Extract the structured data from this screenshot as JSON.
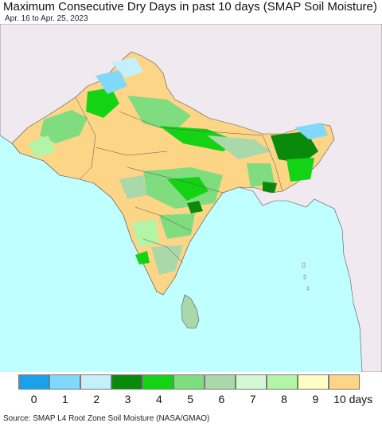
{
  "title": "Maximum Consecutive Dry Days in past 10 days (SMAP Soil Moisture)",
  "subtitle": "Apr. 16 to Apr. 25, 2023",
  "legend": {
    "items": [
      {
        "label": "0",
        "color": "#1ba1ea"
      },
      {
        "label": "1",
        "color": "#80d8fa"
      },
      {
        "label": "2",
        "color": "#c4f0fc"
      },
      {
        "label": "3",
        "color": "#0a8a0a"
      },
      {
        "label": "4",
        "color": "#14d314"
      },
      {
        "label": "5",
        "color": "#7fdc7f"
      },
      {
        "label": "6",
        "color": "#a9d8a9"
      },
      {
        "label": "7",
        "color": "#d4f7d4"
      },
      {
        "label": "8",
        "color": "#b3f5a7"
      },
      {
        "label": "9",
        "color": "#fffdc6"
      },
      {
        "label": "10 days",
        "color": "#fdd587"
      }
    ]
  },
  "source": "Source: SMAP L4 Root Zone Soil Moisture (NASA/GMAO)",
  "colors": {
    "ocean": "#bfffff",
    "no_data_land": "#f0eaf0",
    "border": "#555555"
  }
}
